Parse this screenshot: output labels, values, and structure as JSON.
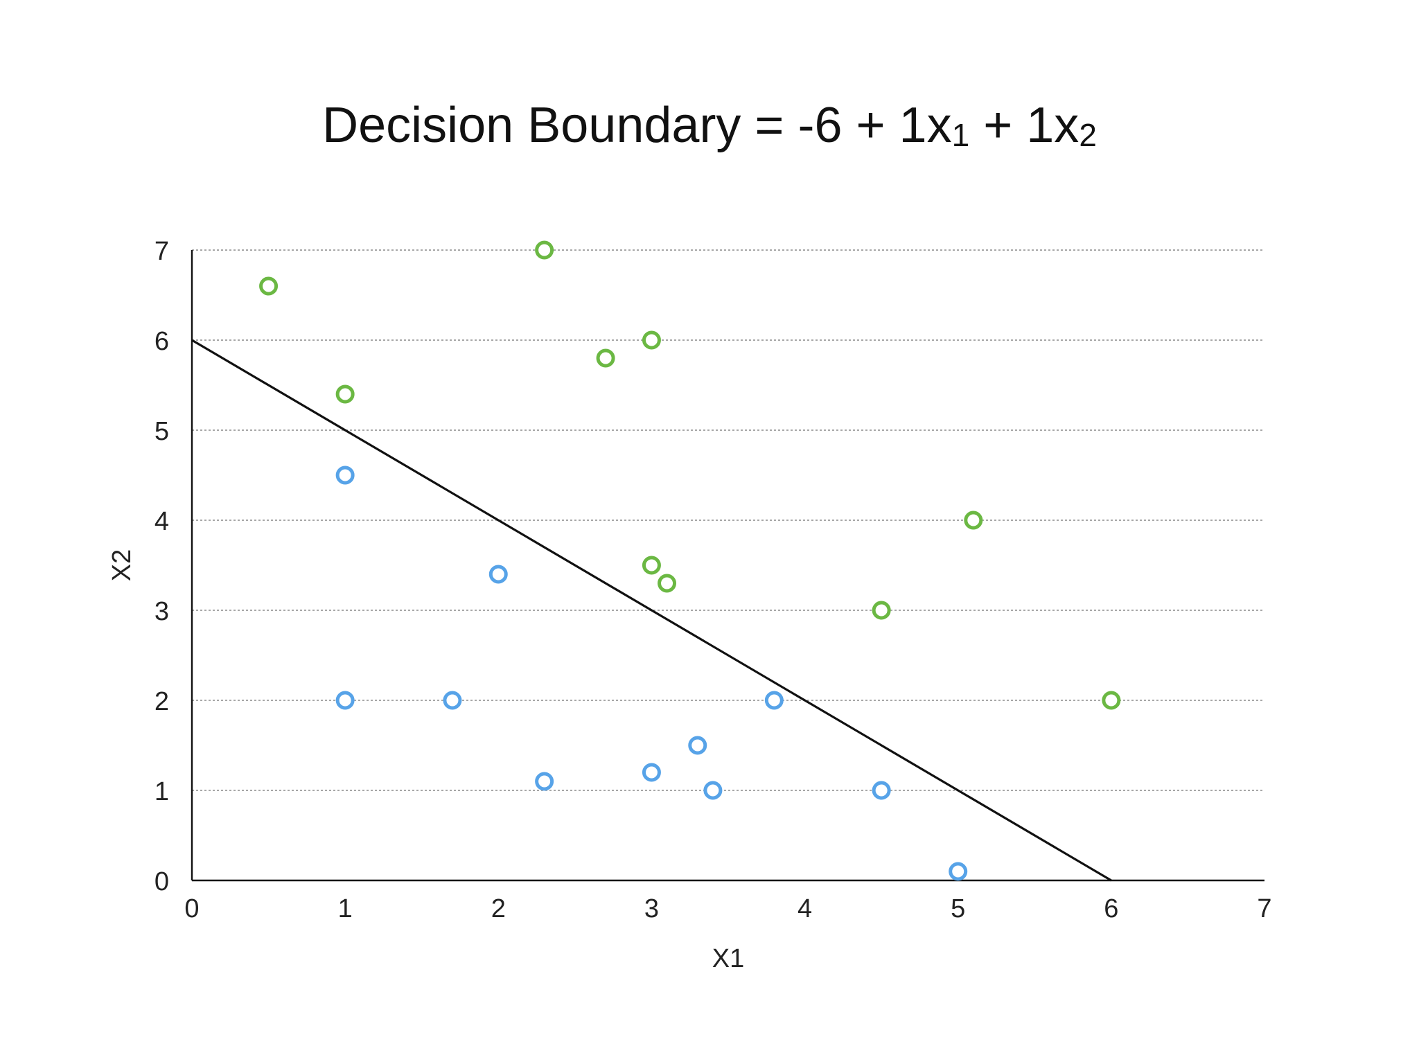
{
  "chart_data": {
    "type": "scatter",
    "title": {
      "main": "Decision Boundary = -6 + 1x",
      "sub1": "1",
      "mid": " + 1x",
      "sub2": "2"
    },
    "xlabel": "X1",
    "ylabel": "X2",
    "xlim": [
      0,
      7
    ],
    "ylim": [
      0,
      7
    ],
    "xticks": [
      "0",
      "1",
      "2",
      "3",
      "4",
      "5",
      "6",
      "7"
    ],
    "yticks": [
      "0",
      "1",
      "2",
      "3",
      "4",
      "5",
      "6",
      "7"
    ],
    "grid": "horizontal dotted",
    "decision_boundary": {
      "intercept": -6,
      "w1": 1,
      "w2": 1,
      "from": [
        0,
        6
      ],
      "to": [
        6,
        0
      ]
    },
    "series": [
      {
        "color": "#6bb843",
        "points": [
          [
            0.5,
            6.6
          ],
          [
            2.3,
            7.0
          ],
          [
            3.0,
            6.0
          ],
          [
            2.7,
            5.8
          ],
          [
            1.0,
            5.4
          ],
          [
            5.1,
            4.0
          ],
          [
            3.0,
            3.5
          ],
          [
            3.1,
            3.3
          ],
          [
            4.5,
            3.0
          ],
          [
            6.0,
            2.0
          ]
        ]
      },
      {
        "color": "#57a3e8",
        "points": [
          [
            1.0,
            4.5
          ],
          [
            2.0,
            3.4
          ],
          [
            1.0,
            2.0
          ],
          [
            1.7,
            2.0
          ],
          [
            3.8,
            2.0
          ],
          [
            3.3,
            1.5
          ],
          [
            3.0,
            1.2
          ],
          [
            2.3,
            1.1
          ],
          [
            3.4,
            1.0
          ],
          [
            4.5,
            1.0
          ],
          [
            5.0,
            0.1
          ]
        ]
      }
    ]
  }
}
